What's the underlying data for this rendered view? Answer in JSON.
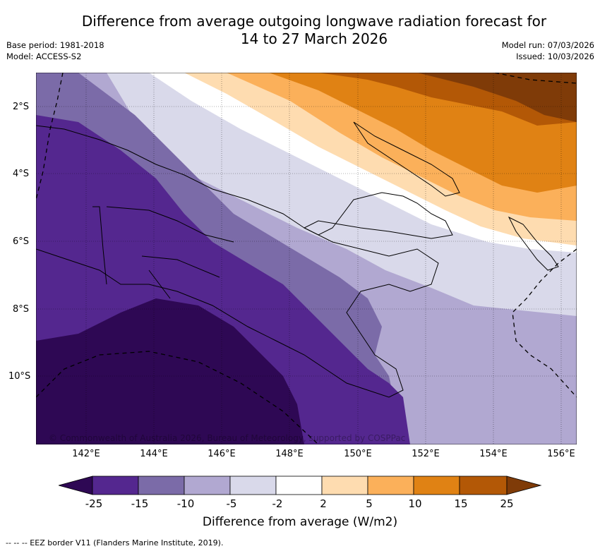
{
  "title_line1": "Difference from average outgoing longwave radiation forecast for",
  "title_line2": "14 to 27 March 2026",
  "base_period": "Base period: 1981-2018",
  "model": "Model: ACCESS-S2",
  "model_run": "Model run: 07/03/2026",
  "issued": "Issued: 10/03/2026",
  "lat_labels": [
    "2°S",
    "4°S",
    "6°S",
    "8°S",
    "10°S"
  ],
  "lon_labels": [
    "142°E",
    "144°E",
    "146°E",
    "148°E",
    "150°E",
    "152°E",
    "154°E",
    "156°E"
  ],
  "colorbar": {
    "ticks": [
      "-25",
      "-15",
      "-10",
      "-5",
      "-2",
      "2",
      "5",
      "10",
      "15",
      "25"
    ],
    "colors": [
      "#2e0854",
      "#54278f",
      "#7b6ba8",
      "#b1a8d1",
      "#d9d9ea",
      "#ffffff",
      "#fedcb0",
      "#fbb05a",
      "#e08214",
      "#b35806",
      "#7f3b08"
    ],
    "title": "Difference from average (W/m2)"
  },
  "footer": "-- -- -- EEZ border V11 (Flanders Marine Institute, 2019).",
  "copyright": "© Commonwealth of Australia 2026, Bureau of Meteorology, supported by COSPPac"
}
